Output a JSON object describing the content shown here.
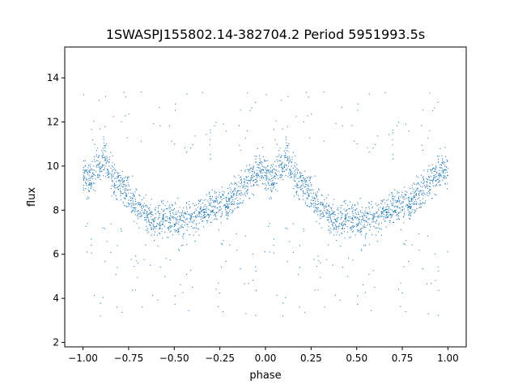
{
  "chart_data": {
    "type": "scatter",
    "title": "1SWASPJ155802.14-382704.2 Period 5951993.5s",
    "xlabel": "phase",
    "ylabel": "flux",
    "xlim": [
      -1.1,
      1.1
    ],
    "ylim": [
      1.8,
      15.4
    ],
    "x_ticks": [
      -1.0,
      -0.75,
      -0.5,
      -0.25,
      0.0,
      0.25,
      0.5,
      0.75,
      1.0
    ],
    "x_tick_labels": [
      "−1.00",
      "−0.75",
      "−0.50",
      "−0.25",
      "0.00",
      "0.25",
      "0.50",
      "0.75",
      "1.00"
    ],
    "y_ticks": [
      2,
      4,
      6,
      8,
      10,
      12,
      14
    ],
    "y_tick_labels": [
      "2",
      "4",
      "6",
      "8",
      "10",
      "12",
      "14"
    ],
    "grid": false,
    "legend": "none",
    "marker_color": "#1f77b4",
    "trend_phase": [
      0.0,
      0.03,
      0.05,
      0.08,
      0.12,
      0.16,
      0.2,
      0.25,
      0.28,
      0.3,
      0.35,
      0.4,
      0.45,
      0.5,
      0.55,
      0.6,
      0.65,
      0.7,
      0.75,
      0.8,
      0.85,
      0.9,
      0.95,
      1.0
    ],
    "trend_flux": [
      9.8,
      9.3,
      9.6,
      10.0,
      10.4,
      9.4,
      9.1,
      8.8,
      8.3,
      8.1,
      7.8,
      7.6,
      7.5,
      7.6,
      7.5,
      7.7,
      7.9,
      8.1,
      8.2,
      8.4,
      8.8,
      9.3,
      9.7,
      9.9
    ]
  }
}
